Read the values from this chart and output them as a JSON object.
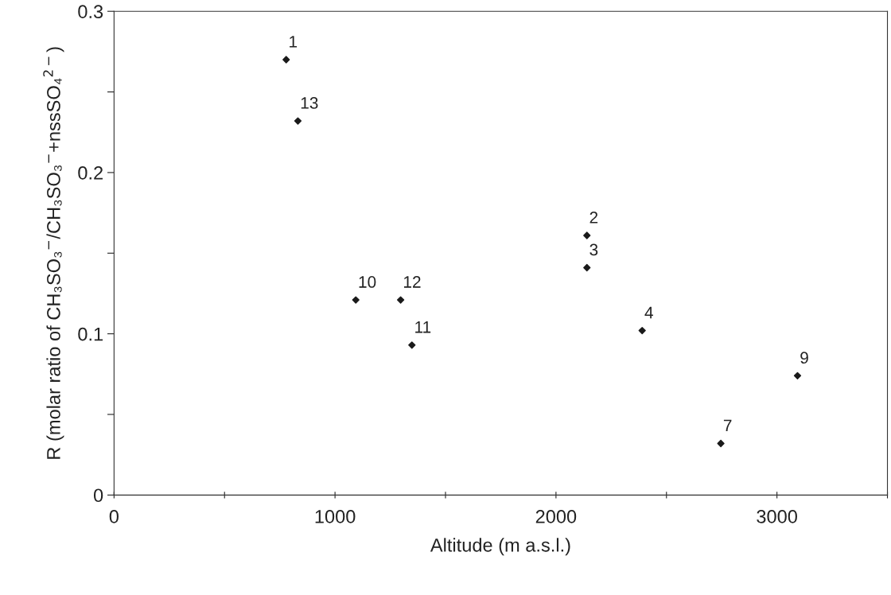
{
  "chart_data": {
    "type": "scatter",
    "xlabel": "Altitude (m a.s.l.)",
    "ylabel": "R (molar ratio of CH₃SO₃$^{−}$/CH₃SO₃$^{−}$+nssSO₄$^{2−}$)",
    "x": [
      779,
      2140,
      2140,
      2390,
      2746,
      3093,
      1094,
      1348,
      1297,
      832
    ],
    "series": [
      {
        "color": "#1a1a1a",
        "values": [
          0.27,
          0.161,
          0.141,
          0.102,
          0.032,
          0.074,
          0.121,
          0.093,
          0.121,
          0.232
        ]
      }
    ],
    "annotations": [
      {
        "text": "1",
        "x": 779,
        "y": 0.27
      },
      {
        "text": "2",
        "x": 2140,
        "y": 0.161
      },
      {
        "text": "3",
        "x": 2140,
        "y": 0.141
      },
      {
        "text": "4",
        "x": 2390,
        "y": 0.102
      },
      {
        "text": "7",
        "x": 2746,
        "y": 0.032
      },
      {
        "text": "9",
        "x": 3093,
        "y": 0.074
      },
      {
        "text": "10",
        "x": 1094,
        "y": 0.121
      },
      {
        "text": "11",
        "x": 1348,
        "y": 0.093
      },
      {
        "text": "12",
        "x": 1297,
        "y": 0.121
      },
      {
        "text": "13",
        "x": 832,
        "y": 0.232
      }
    ],
    "xlim": [
      0,
      3500
    ],
    "ylim": [
      0,
      0.3
    ],
    "xticks": [
      0,
      {
        "value": 500,
        "label": null
      },
      1000,
      {
        "value": 1500,
        "label": null
      },
      2000,
      {
        "value": 2500,
        "label": null
      },
      3000,
      {
        "value": 3500,
        "label": null
      }
    ],
    "yticks": [
      0,
      {
        "value": 0.05,
        "label": null
      },
      0.1,
      {
        "value": 0.15,
        "label": null
      },
      0.2,
      {
        "value": 0.25,
        "label": null
      },
      0.3
    ],
    "marker": "diamond",
    "grid": false
  }
}
